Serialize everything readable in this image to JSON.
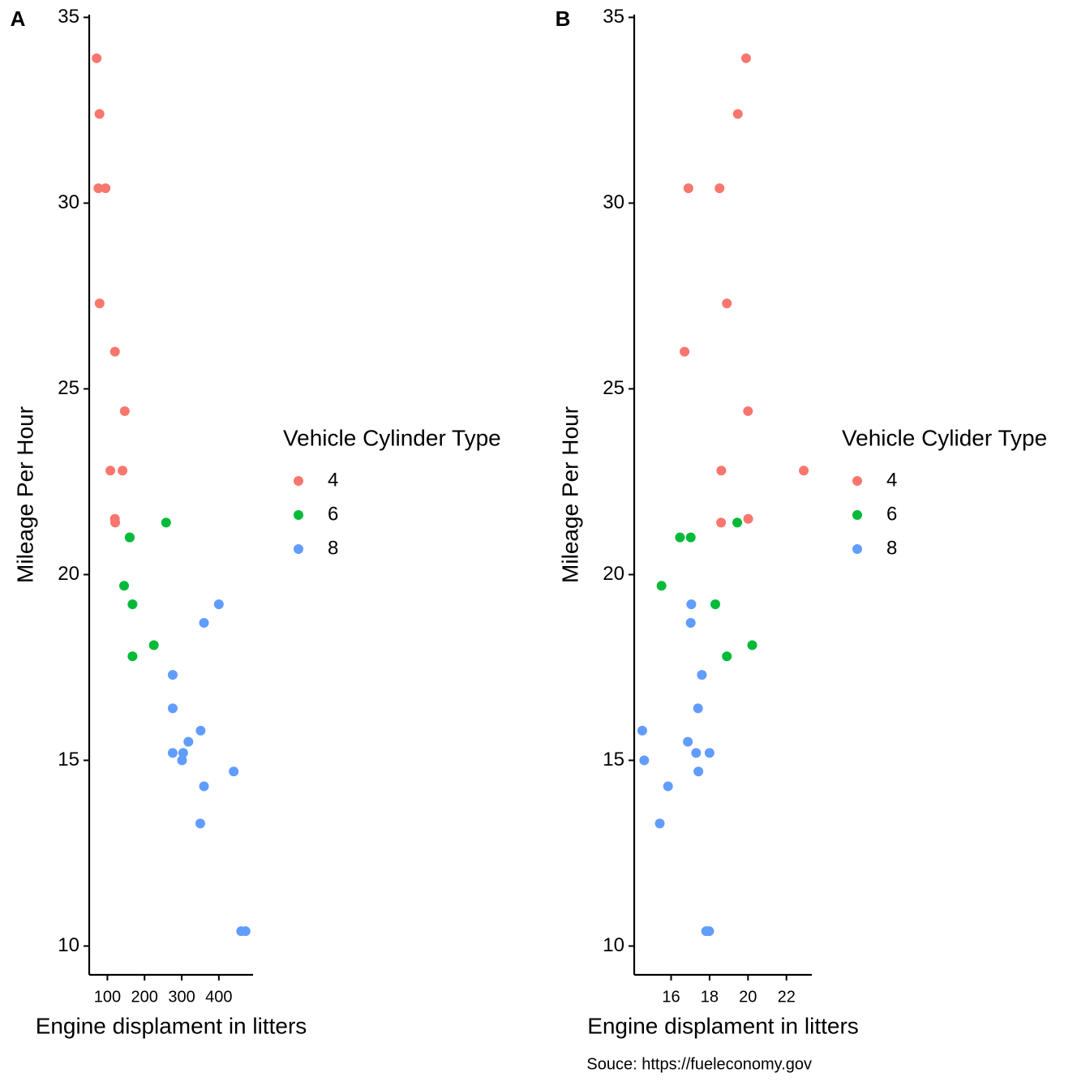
{
  "chart_data": [
    {
      "type": "scatter",
      "tag": "A",
      "x_label": "Engine displament in litters",
      "y_label": "Mileage Per Hour",
      "legend_title": "Vehicle Cylinder Type",
      "xlim": [
        51.05,
        492.05
      ],
      "xticks": [
        100,
        200,
        300,
        400
      ],
      "ylim": [
        9.225,
        35.075
      ],
      "yticks": [
        10,
        15,
        20,
        25,
        30,
        35
      ],
      "series": [
        {
          "name": "4",
          "color": "#F8766D",
          "x": [
            108,
            146.7,
            140.8,
            78.7,
            75.7,
            71.1,
            120.1,
            79,
            120.3,
            95.1,
            121
          ],
          "values": [
            22.8,
            24.4,
            22.8,
            32.4,
            30.4,
            33.9,
            21.5,
            27.3,
            26.0,
            30.4,
            21.4
          ]
        },
        {
          "name": "6",
          "color": "#00BA38",
          "x": [
            160,
            160,
            258,
            225,
            167.6,
            167.6,
            145
          ],
          "values": [
            21.0,
            21.0,
            21.4,
            18.1,
            19.2,
            17.8,
            19.7
          ]
        },
        {
          "name": "8",
          "color": "#619CFF",
          "x": [
            360,
            360,
            275.8,
            275.8,
            275.8,
            472,
            460,
            440,
            318,
            304,
            350,
            400,
            351,
            301
          ],
          "values": [
            18.7,
            14.3,
            16.4,
            17.3,
            15.2,
            10.4,
            10.4,
            14.7,
            15.5,
            15.2,
            13.3,
            19.2,
            15.8,
            15.0
          ]
        }
      ]
    },
    {
      "type": "scatter",
      "tag": "B",
      "x_label": "Engine displament in litters",
      "y_label": "Mileage Per Hour",
      "legend_title": "Vehicle Cylider Type",
      "xlim": [
        14.08,
        23.32
      ],
      "xticks": [
        16,
        18,
        20,
        22
      ],
      "ylim": [
        9.225,
        35.075
      ],
      "yticks": [
        10,
        15,
        20,
        25,
        30,
        35
      ],
      "series": [
        {
          "name": "4",
          "color": "#F8766D",
          "x": [
            18.61,
            20.0,
            22.9,
            19.47,
            18.52,
            19.9,
            20.01,
            18.9,
            16.7,
            16.9,
            18.6
          ],
          "values": [
            22.8,
            24.4,
            22.8,
            32.4,
            30.4,
            33.9,
            21.5,
            27.3,
            26.0,
            30.4,
            21.4
          ]
        },
        {
          "name": "6",
          "color": "#00BA38",
          "x": [
            16.46,
            17.02,
            19.44,
            20.22,
            18.3,
            18.9,
            15.5
          ],
          "values": [
            21.0,
            21.0,
            21.4,
            18.1,
            19.2,
            17.8,
            19.7
          ]
        },
        {
          "name": "8",
          "color": "#619CFF",
          "x": [
            17.02,
            15.84,
            17.4,
            17.6,
            18.0,
            17.98,
            17.82,
            17.42,
            16.87,
            17.3,
            15.41,
            17.05,
            14.5,
            14.6
          ],
          "values": [
            18.7,
            14.3,
            16.4,
            17.3,
            15.2,
            10.4,
            10.4,
            14.7,
            15.5,
            15.2,
            13.3,
            19.2,
            15.8,
            15.0
          ]
        }
      ]
    }
  ],
  "caption": "Souce: https://fueleconomy.gov"
}
